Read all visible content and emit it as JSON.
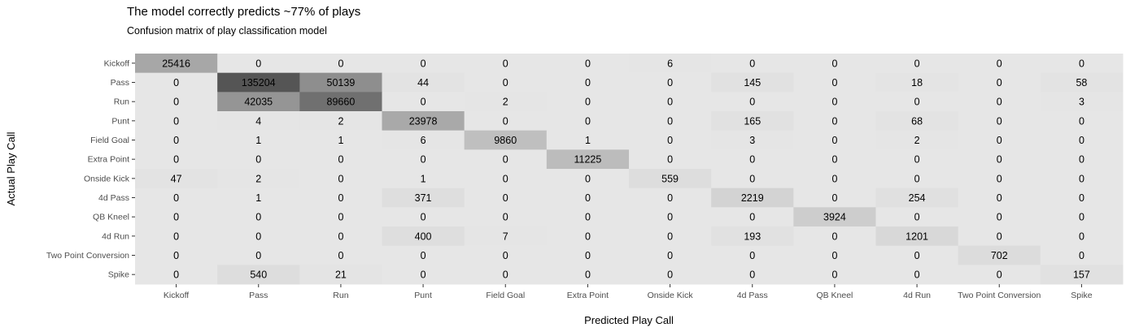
{
  "chart_data": {
    "type": "heatmap",
    "title": "The model correctly predicts ~77% of plays",
    "subtitle": "Confusion matrix of play classification model",
    "xlabel": "Predicted Play Call",
    "ylabel": "Actual Play Call",
    "x_categories": [
      "Kickoff",
      "Pass",
      "Run",
      "Punt",
      "Field Goal",
      "Extra Point",
      "Onside Kick",
      "4d Pass",
      "QB Kneel",
      "4d Run",
      "Two Point Conversion",
      "Spike"
    ],
    "y_categories": [
      "Kickoff",
      "Pass",
      "Run",
      "Punt",
      "Field Goal",
      "Extra Point",
      "Onside Kick",
      "4d Pass",
      "QB Kneel",
      "4d Run",
      "Two Point Conversion",
      "Spike"
    ],
    "values": [
      [
        25416,
        0,
        0,
        0,
        0,
        0,
        6,
        0,
        0,
        0,
        0,
        0
      ],
      [
        0,
        135204,
        50139,
        44,
        0,
        0,
        0,
        145,
        0,
        18,
        0,
        58
      ],
      [
        0,
        42035,
        89660,
        0,
        2,
        0,
        0,
        0,
        0,
        0,
        0,
        3
      ],
      [
        0,
        4,
        2,
        23978,
        0,
        0,
        0,
        165,
        0,
        68,
        0,
        0
      ],
      [
        0,
        1,
        1,
        6,
        9860,
        1,
        0,
        3,
        0,
        2,
        0,
        0
      ],
      [
        0,
        0,
        0,
        0,
        0,
        11225,
        0,
        0,
        0,
        0,
        0,
        0
      ],
      [
        47,
        2,
        0,
        1,
        0,
        0,
        559,
        0,
        0,
        0,
        0,
        0
      ],
      [
        0,
        1,
        0,
        371,
        0,
        0,
        0,
        2219,
        0,
        254,
        0,
        0
      ],
      [
        0,
        0,
        0,
        0,
        0,
        0,
        0,
        0,
        3924,
        0,
        0,
        0
      ],
      [
        0,
        0,
        0,
        400,
        7,
        0,
        0,
        193,
        0,
        1201,
        0,
        0
      ],
      [
        0,
        0,
        0,
        0,
        0,
        0,
        0,
        0,
        0,
        0,
        702,
        0
      ],
      [
        0,
        540,
        21,
        0,
        0,
        0,
        0,
        0,
        0,
        0,
        0,
        157
      ]
    ],
    "colors": {
      "panel": "#e6e6e6",
      "low": "#e6e6e6",
      "high": "#555555",
      "text": "#000000",
      "axis_text": "#4d4d4d"
    },
    "legend": "none",
    "grid": false
  }
}
